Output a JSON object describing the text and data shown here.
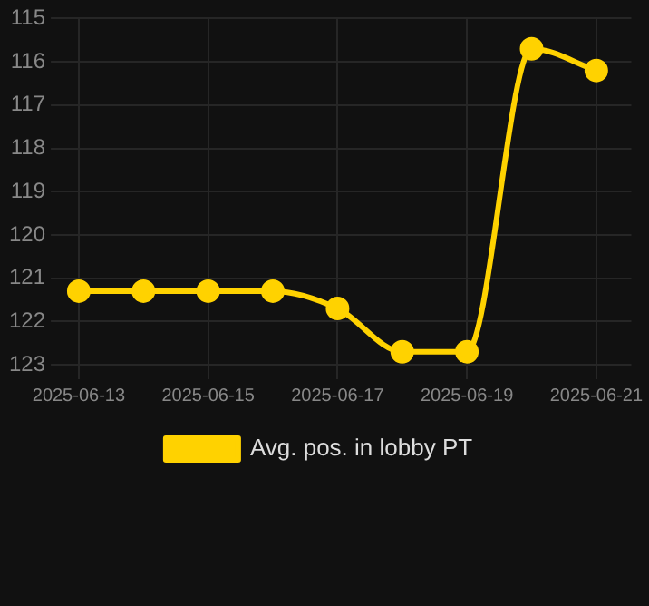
{
  "chart_data": {
    "type": "line",
    "x": [
      "2025-06-13",
      "2025-06-14",
      "2025-06-15",
      "2025-06-16",
      "2025-06-17",
      "2025-06-18",
      "2025-06-19",
      "2025-06-20",
      "2025-06-21"
    ],
    "series": [
      {
        "name": "Avg. pos. in lobby PT",
        "color": "#ffd200",
        "values": [
          121.3,
          121.3,
          121.3,
          121.3,
          121.7,
          122.7,
          122.7,
          115.7,
          116.2
        ]
      }
    ],
    "xlim": [
      "2025-06-12T19:00",
      "2025-06-21T13:00"
    ],
    "xticks": [
      "2025-06-13",
      "2025-06-15",
      "2025-06-17",
      "2025-06-19",
      "2025-06-21"
    ],
    "ylim": [
      123,
      115
    ],
    "yticks": [
      115,
      116,
      117,
      118,
      119,
      120,
      121,
      122,
      123
    ],
    "grid": true,
    "legend": "bottom",
    "marker": "circle",
    "line_style": "solid"
  }
}
